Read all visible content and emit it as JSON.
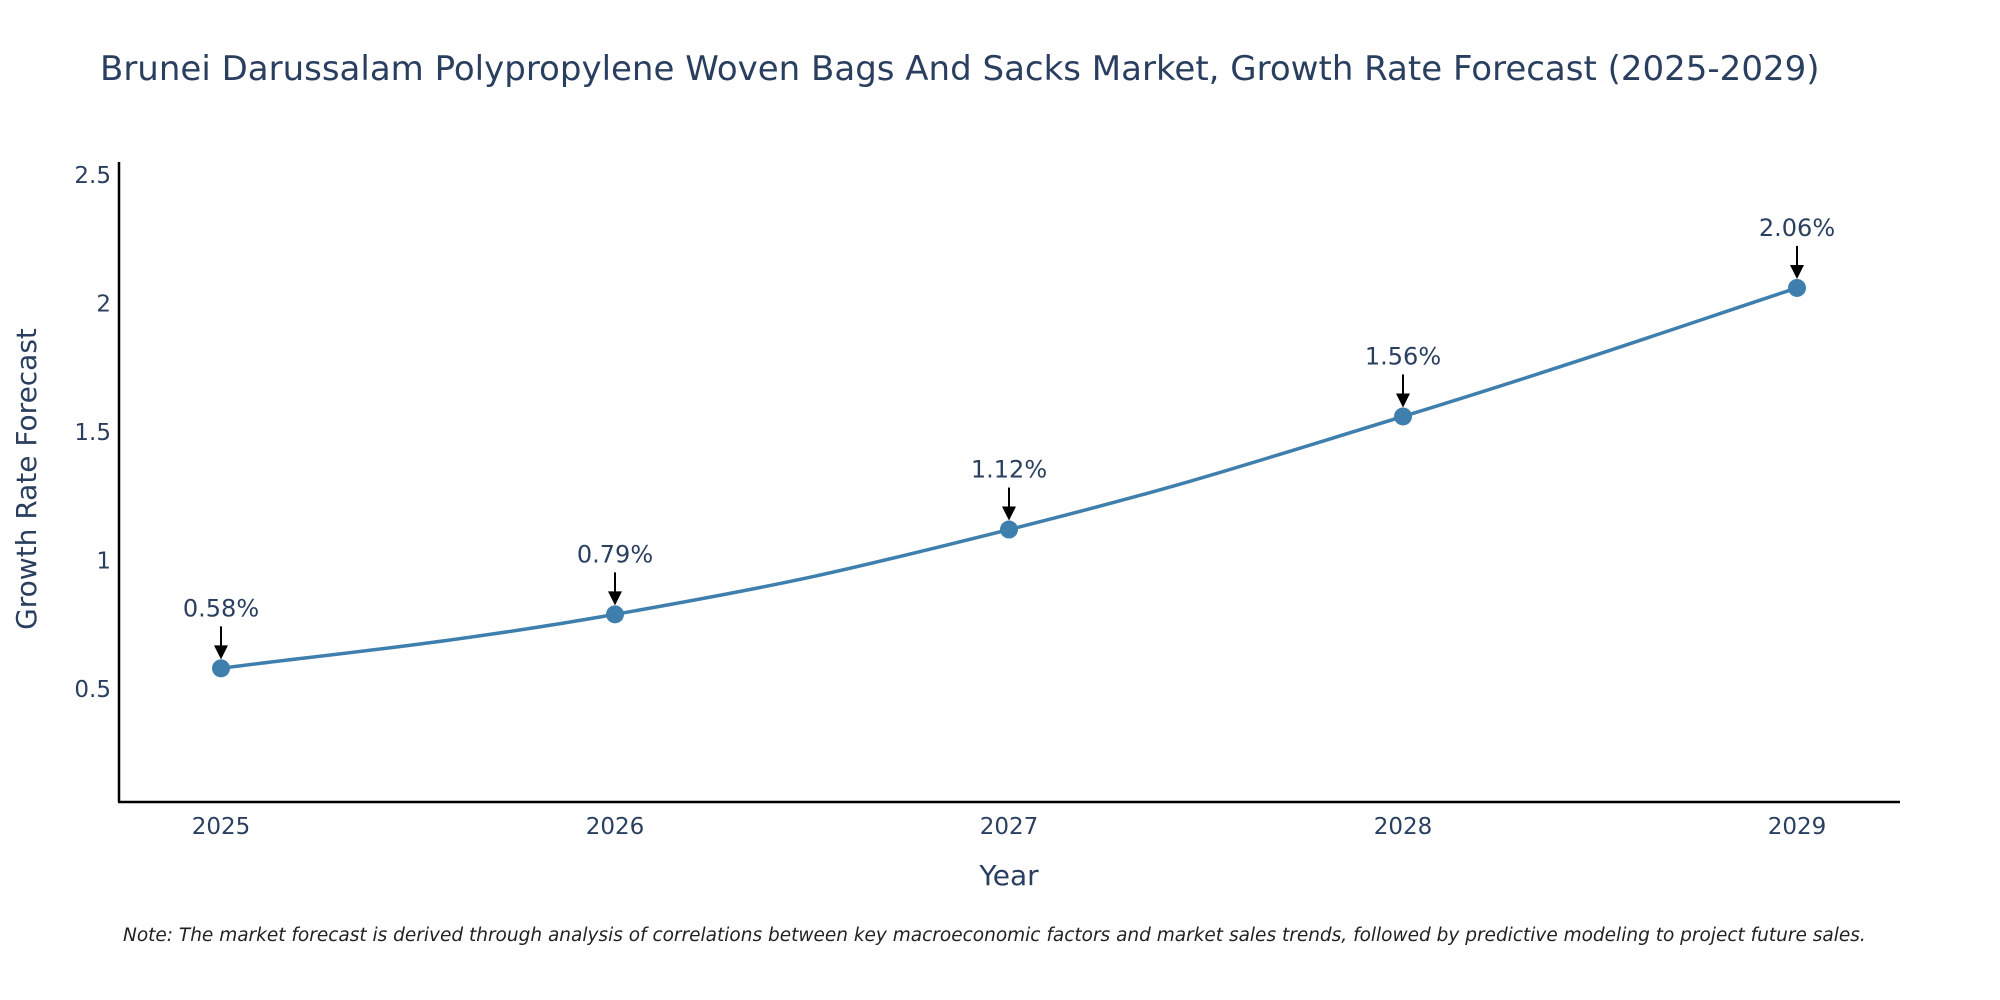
{
  "chart_data": {
    "type": "line",
    "title": "Brunei Darussalam Polypropylene Woven Bags And Sacks Market, Growth Rate Forecast (2025-2029)",
    "xlabel": "Year",
    "ylabel": "Growth Rate Forecast",
    "categories": [
      "2025",
      "2026",
      "2027",
      "2028",
      "2029"
    ],
    "values": [
      0.58,
      0.79,
      1.12,
      1.56,
      2.06
    ],
    "data_labels": [
      "0.58%",
      "0.79%",
      "1.12%",
      "1.56%",
      "2.06%"
    ],
    "y_ticks": [
      0.5,
      1,
      1.5,
      2,
      2.5
    ],
    "y_tick_labels": [
      "0.5",
      "1",
      "1.5",
      "2",
      "2.5"
    ],
    "ylim": [
      0.06,
      2.55
    ],
    "grid": false,
    "legend": "none",
    "note": "Note: The market forecast is derived through analysis of correlations between key macroeconomic factors and market sales trends, followed by predictive modeling to project future sales.",
    "colors": {
      "line": "#3f7fad",
      "marker": "#3f7fad",
      "axis": "#000000",
      "text": "#2a3f5f",
      "arrow": "#000000"
    }
  }
}
